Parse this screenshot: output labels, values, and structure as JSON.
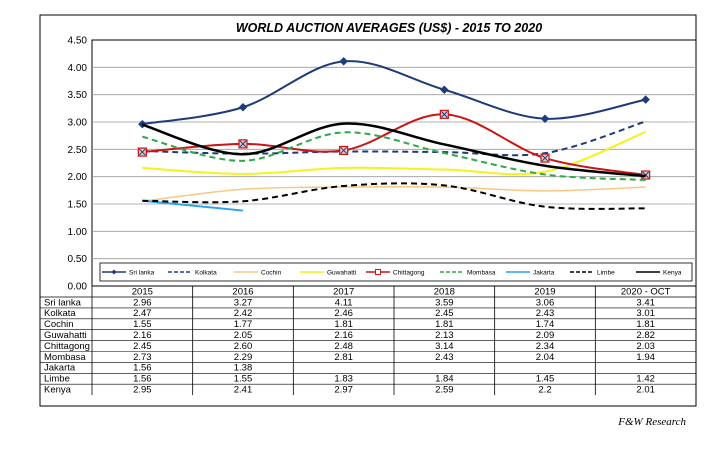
{
  "chart_data": {
    "type": "line",
    "title": "WORLD AUCTION AVERAGES (US$) - 2015 TO 2020",
    "categories": [
      "2015",
      "2016",
      "2017",
      "2018",
      "2019",
      "2020 - OCT"
    ],
    "ylim": [
      0,
      4.5
    ],
    "yticks": [
      "0.00",
      "0.50",
      "1.00",
      "1.50",
      "2.00",
      "2.50",
      "3.00",
      "3.50",
      "4.00",
      "4.50"
    ],
    "grid": true,
    "legend_position": "bottom",
    "series": [
      {
        "name": "Sri lanka",
        "color": "#1f3c7a",
        "dash": "solid",
        "width": 2,
        "marker": "diamond",
        "values": [
          2.96,
          3.27,
          4.11,
          3.59,
          3.06,
          3.41
        ],
        "labels": [
          "2.96",
          "3.27",
          "4.11",
          "3.59",
          "3.06",
          "3.41"
        ]
      },
      {
        "name": "Kolkata",
        "color": "#1f3c7a",
        "dash": "dashed",
        "width": 2,
        "marker": "none",
        "values": [
          2.47,
          2.42,
          2.46,
          2.45,
          2.43,
          3.01
        ],
        "labels": [
          "2.47",
          "2.42",
          "2.46",
          "2.45",
          "2.43",
          "3.01"
        ]
      },
      {
        "name": "Cochin",
        "color": "#f6c785",
        "dash": "solid",
        "width": 1.5,
        "marker": "none",
        "values": [
          1.55,
          1.77,
          1.81,
          1.81,
          1.74,
          1.81
        ],
        "labels": [
          "1.55",
          "1.77",
          "1.81",
          "1.81",
          "1.74",
          "1.81"
        ]
      },
      {
        "name": "Guwahatti",
        "color": "#f5f21a",
        "dash": "solid",
        "width": 2,
        "marker": "none",
        "values": [
          2.16,
          2.05,
          2.16,
          2.13,
          2.09,
          2.82
        ],
        "labels": [
          "2.16",
          "2.05",
          "2.16",
          "2.13",
          "2.09",
          "2.82"
        ]
      },
      {
        "name": "Chittagong",
        "color": "#cc1414",
        "dash": "solid",
        "width": 2,
        "marker": "square",
        "values": [
          2.45,
          2.6,
          2.48,
          3.14,
          2.34,
          2.03
        ],
        "labels": [
          "2.45",
          "2.60",
          "2.48",
          "3.14",
          "2.34",
          "2.03"
        ]
      },
      {
        "name": "Mombasa",
        "color": "#2ea84a",
        "dash": "dashed",
        "width": 2,
        "marker": "none",
        "values": [
          2.73,
          2.29,
          2.81,
          2.43,
          2.04,
          1.94
        ],
        "labels": [
          "2.73",
          "2.29",
          "2.81",
          "2.43",
          "2.04",
          "1.94"
        ]
      },
      {
        "name": "Jakarta",
        "color": "#29a3e6",
        "dash": "solid",
        "width": 2,
        "marker": "none",
        "values": [
          1.56,
          1.38,
          null,
          null,
          null,
          null
        ],
        "labels": [
          "1.56",
          "1.38",
          "",
          "",
          "",
          ""
        ]
      },
      {
        "name": "Limbe",
        "color": "#000000",
        "dash": "dashed",
        "width": 2,
        "marker": "none",
        "values": [
          1.56,
          1.55,
          1.83,
          1.84,
          1.45,
          1.42
        ],
        "labels": [
          "1.56",
          "1.55",
          "1.83",
          "1.84",
          "1.45",
          "1.42"
        ]
      },
      {
        "name": "Kenya",
        "color": "#000000",
        "dash": "solid",
        "width": 2.5,
        "marker": "none",
        "values": [
          2.95,
          2.41,
          2.97,
          2.59,
          2.2,
          2.01
        ],
        "labels": [
          "2.95",
          "2.41",
          "2.97",
          "2.59",
          "2.2",
          "2.01"
        ]
      }
    ]
  },
  "source_note": "F&W Research"
}
